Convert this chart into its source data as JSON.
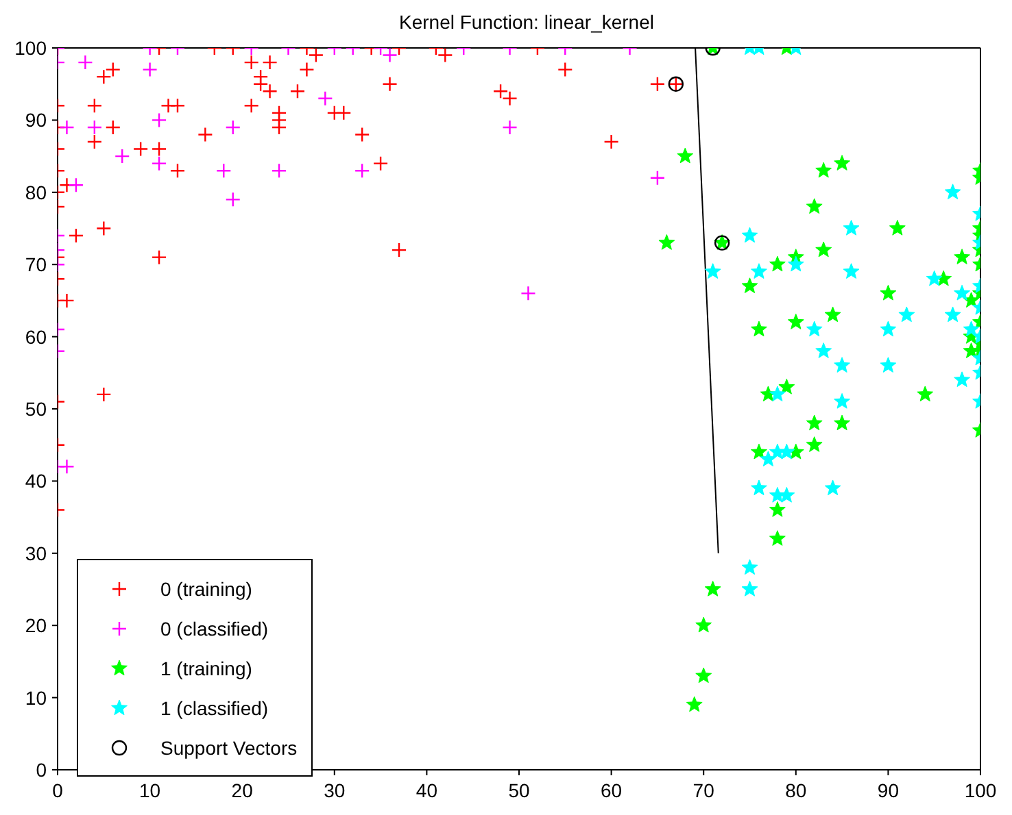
{
  "chart_data": {
    "type": "scatter",
    "title": "Kernel Function: linear_kernel",
    "xlim": [
      0,
      100
    ],
    "ylim": [
      0,
      100
    ],
    "xticks": [
      0,
      10,
      20,
      30,
      40,
      50,
      60,
      70,
      80,
      90,
      100
    ],
    "yticks": [
      0,
      10,
      20,
      30,
      40,
      50,
      60,
      70,
      80,
      90,
      100
    ],
    "legend": "bottom left",
    "series": [
      {
        "name": "0 (training)",
        "color": "#ff0000",
        "marker": "cross",
        "x": [
          0,
          0,
          0,
          0,
          0,
          0,
          0,
          0,
          0,
          0,
          0,
          0,
          0,
          1,
          1,
          2,
          4,
          4,
          5,
          5,
          5,
          6,
          6,
          9,
          11,
          11,
          11,
          12,
          13,
          13,
          16,
          17,
          19,
          21,
          21,
          22,
          22,
          23,
          23,
          24,
          24,
          24,
          26,
          27,
          27,
          28,
          30,
          31,
          33,
          34,
          35,
          36,
          37,
          37,
          41,
          42,
          48,
          49,
          52,
          55,
          60,
          65,
          67
        ],
        "values": [
          36,
          45,
          51,
          65,
          68,
          71,
          78,
          80,
          83,
          86,
          89,
          92,
          100,
          65,
          81,
          74,
          87,
          92,
          52,
          75,
          96,
          89,
          97,
          86,
          71,
          86,
          100,
          92,
          83,
          92,
          88,
          100,
          100,
          92,
          98,
          95,
          96,
          94,
          98,
          89,
          90,
          91,
          94,
          97,
          100,
          99,
          91,
          91,
          88,
          100,
          84,
          95,
          72,
          100,
          100,
          99,
          94,
          93,
          100,
          97,
          87,
          95,
          95
        ]
      },
      {
        "name": "0 (classified)",
        "color": "#ff00ff",
        "marker": "cross",
        "x": [
          0,
          0,
          0,
          0,
          0,
          0,
          0,
          0,
          1,
          1,
          2,
          3,
          4,
          7,
          10,
          10,
          11,
          11,
          13,
          18,
          19,
          19,
          21,
          24,
          25,
          29,
          30,
          32,
          33,
          35,
          36,
          44,
          49,
          49,
          51,
          55,
          62,
          65
        ],
        "values": [
          42,
          58,
          61,
          70,
          72,
          74,
          98,
          100,
          42,
          89,
          81,
          98,
          89,
          85,
          97,
          100,
          84,
          90,
          100,
          83,
          79,
          89,
          100,
          83,
          100,
          93,
          100,
          100,
          83,
          100,
          99,
          100,
          89,
          100,
          66,
          100,
          100,
          82
        ]
      },
      {
        "name": "1 (training)",
        "color": "#00ff00",
        "marker": "star",
        "x": [
          66,
          68,
          69,
          70,
          70,
          71,
          71,
          72,
          75,
          76,
          76,
          77,
          78,
          78,
          78,
          79,
          79,
          80,
          80,
          80,
          82,
          82,
          82,
          83,
          83,
          84,
          85,
          85,
          90,
          91,
          94,
          96,
          98,
          99,
          99,
          99,
          100,
          100,
          100,
          100,
          100,
          100,
          100,
          100,
          100,
          100,
          100
        ],
        "values": [
          73,
          85,
          9,
          13,
          20,
          25,
          100,
          73,
          67,
          61,
          44,
          52,
          70,
          36,
          32,
          100,
          53,
          62,
          44,
          71,
          78,
          48,
          45,
          83,
          72,
          63,
          84,
          48,
          66,
          75,
          52,
          68,
          71,
          60,
          58,
          65,
          47,
          58,
          59,
          62,
          66,
          70,
          72,
          74,
          75,
          82,
          83
        ]
      },
      {
        "name": "1 (classified)",
        "color": "#00ffff",
        "marker": "star",
        "x": [
          71,
          75,
          75,
          75,
          76,
          76,
          77,
          78,
          78,
          78,
          79,
          79,
          80,
          80,
          82,
          83,
          84,
          85,
          85,
          86,
          86,
          90,
          90,
          92,
          95,
          97,
          97,
          98,
          98,
          99,
          100,
          100,
          100,
          100,
          100,
          100,
          100,
          100,
          75,
          76
        ],
        "values": [
          69,
          25,
          28,
          74,
          39,
          69,
          43,
          38,
          44,
          52,
          38,
          44,
          70,
          100,
          61,
          58,
          39,
          51,
          56,
          69,
          75,
          56,
          61,
          63,
          68,
          63,
          80,
          54,
          66,
          61,
          51,
          55,
          57,
          60,
          64,
          67,
          73,
          77,
          100,
          100
        ]
      },
      {
        "name": "Support Vectors",
        "color": "#000000",
        "marker": "circle",
        "x": [
          67,
          71,
          72
        ],
        "values": [
          95,
          100,
          73
        ]
      },
      {
        "type": "line",
        "color": "#000000",
        "marker": "none",
        "x": [
          69.1,
          71.6
        ],
        "values": [
          100,
          30
        ]
      }
    ]
  }
}
